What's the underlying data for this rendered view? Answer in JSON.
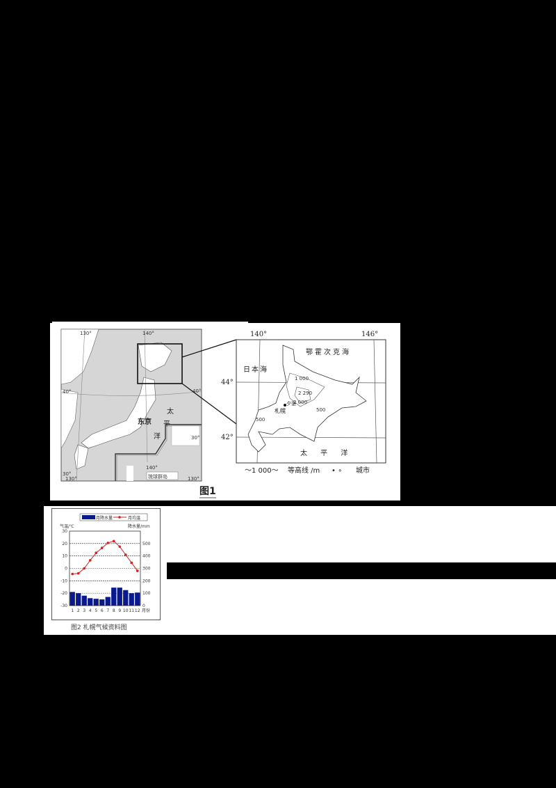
{
  "figure1": {
    "caption": "图1",
    "overview_map": {
      "lon_labels": [
        "130°",
        "140°",
        "130°",
        "140°",
        "130°"
      ],
      "lat_labels": [
        "40°",
        "40°",
        "30°",
        "30°"
      ],
      "place_labels": {
        "tokyo": "东京",
        "pacific_vertical": [
          "太",
          "平",
          "洋"
        ],
        "ryukyu": "琉球群岛"
      }
    },
    "detail_map": {
      "lon_labels": [
        "140°",
        "146°"
      ],
      "lat_labels": [
        "44°",
        "42°"
      ],
      "sea_labels": {
        "okhotsk": "鄂霍次克海",
        "japan_sea": "日本海",
        "pacific": "太  平  洋"
      },
      "contour_labels": [
        "1 000",
        "2 290",
        "2 000",
        "500",
        "500"
      ],
      "city_labels": [
        "札幌",
        "夕张"
      ],
      "legend": {
        "contour_sample": "〜1 000〜",
        "contour_label": "等高线 /m",
        "city_symbols": "• ∘",
        "city_label": "城市"
      }
    }
  },
  "figure2": {
    "caption": "图2  札幌气候资料图",
    "legend": {
      "precip": "月降水量",
      "temp": "月均温"
    },
    "left_axis_label": "气温/℃",
    "right_axis_label": "降水量/mm",
    "x_unit": "月份"
  },
  "chart_data": {
    "type": "bar+line",
    "title": "图2 札幌气候资料图",
    "categories": [
      "1",
      "2",
      "3",
      "4",
      "5",
      "6",
      "7",
      "8",
      "9",
      "10",
      "11",
      "12"
    ],
    "xlabel": "月份",
    "series": [
      {
        "name": "月降水量",
        "type": "bar",
        "axis": "right",
        "unit": "mm",
        "values": [
          110,
          100,
          80,
          60,
          55,
          50,
          70,
          145,
          145,
          125,
          100,
          105
        ],
        "color": "#0a1a8c"
      },
      {
        "name": "月均温",
        "type": "line",
        "axis": "left",
        "unit": "℃",
        "values": [
          -4.5,
          -4,
          0,
          6.5,
          12.5,
          16.5,
          20.5,
          22,
          17.5,
          11,
          4.5,
          -2
        ],
        "color": "#d42020"
      }
    ],
    "left_axis": {
      "label": "气温/℃",
      "range": [
        -30,
        30
      ],
      "ticks": [
        30,
        20,
        10,
        0,
        -10,
        -20,
        -30
      ]
    },
    "right_axis": {
      "label": "降水量/mm",
      "range": [
        0,
        600
      ],
      "ticks": [
        500,
        400,
        300,
        200,
        100,
        0
      ]
    },
    "grid": true,
    "legend_position": "top"
  }
}
